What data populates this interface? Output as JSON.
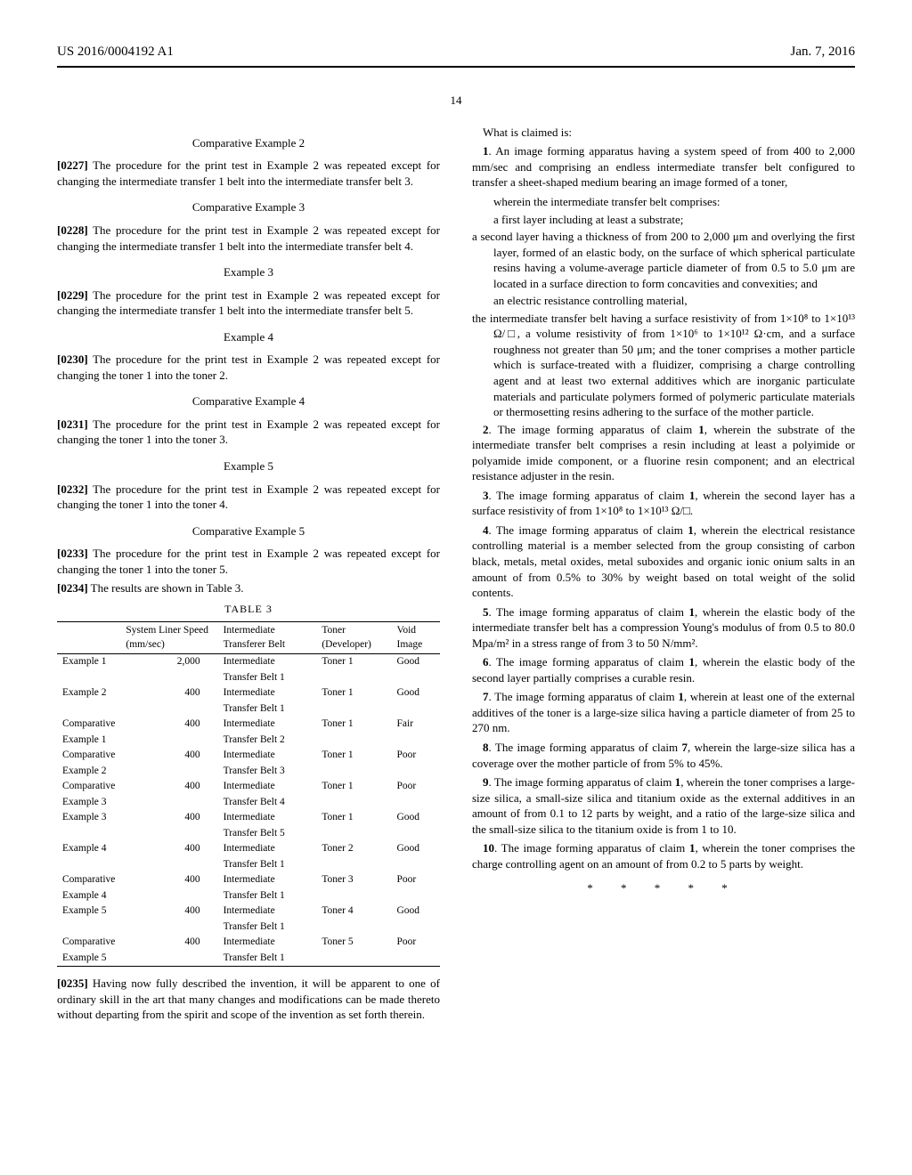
{
  "header": {
    "left": "US 2016/0004192 A1",
    "right": "Jan. 7, 2016",
    "page": "14"
  },
  "left": {
    "ce2_title": "Comparative Example 2",
    "p0227": "[0227]   The procedure for the print test in Example 2 was repeated except for changing the intermediate transfer 1 belt into the intermediate transfer belt 3.",
    "ce3_title": "Comparative Example 3",
    "p0228": "[0228]   The procedure for the print test in Example 2 was repeated except for changing the intermediate transfer 1 belt into the intermediate transfer belt 4.",
    "e3_title": "Example 3",
    "p0229": "[0229]   The procedure for the print test in Example 2 was repeated except for changing the intermediate transfer 1 belt into the intermediate transfer belt 5.",
    "e4_title": "Example 4",
    "p0230": "[0230]   The procedure for the print test in Example 2 was repeated except for changing the toner 1 into the toner 2.",
    "ce4_title": "Comparative Example 4",
    "p0231": "[0231]   The procedure for the print test in Example 2 was repeated except for changing the toner 1 into the toner 3.",
    "e5_title": "Example 5",
    "p0232": "[0232]   The procedure for the print test in Example 2 was repeated except for changing the toner 1 into the toner 4.",
    "ce5_title": "Comparative Example 5",
    "p0233": "[0233]   The procedure for the print test in Example 2 was repeated except for changing the toner 1 into the toner 5.",
    "p0234": "[0234]   The results are shown in Table 3.",
    "table": {
      "caption": "TABLE 3",
      "headers": [
        "",
        "System Liner Speed (mm/sec)",
        "Intermediate Transferer Belt",
        "Toner (Developer)",
        "Void Image"
      ],
      "rows": [
        [
          "Example 1",
          "2,000",
          "Intermediate Transfer Belt 1",
          "Toner 1",
          "Good"
        ],
        [
          "Example 2",
          "400",
          "Intermediate Transfer Belt 1",
          "Toner 1",
          "Good"
        ],
        [
          "Comparative Example 1",
          "400",
          "Intermediate Transfer Belt 2",
          "Toner 1",
          "Fair"
        ],
        [
          "Comparative Example 2",
          "400",
          "Intermediate Transfer Belt 3",
          "Toner 1",
          "Poor"
        ],
        [
          "Comparative Example 3",
          "400",
          "Intermediate Transfer Belt 4",
          "Toner 1",
          "Poor"
        ],
        [
          "Example 3",
          "400",
          "Intermediate Transfer Belt 5",
          "Toner 1",
          "Good"
        ],
        [
          "Example 4",
          "400",
          "Intermediate Transfer Belt 1",
          "Toner 2",
          "Good"
        ],
        [
          "Comparative Example 4",
          "400",
          "Intermediate Transfer Belt 1",
          "Toner 3",
          "Poor"
        ],
        [
          "Example 5",
          "400",
          "Intermediate Transfer Belt 1",
          "Toner 4",
          "Good"
        ],
        [
          "Comparative Example 5",
          "400",
          "Intermediate Transfer Belt 1",
          "Toner 5",
          "Poor"
        ]
      ]
    },
    "p0235": "[0235]   Having now fully described the invention, it will be apparent to one of ordinary skill in the art that many changes and modifications can be made thereto without departing from the spirit and scope of the invention as set forth therein."
  },
  "right": {
    "what": "What is claimed is:",
    "c1a": "1. An image forming apparatus having a system speed of from 400 to 2,000 mm/sec and comprising an endless intermediate transfer belt configured to transfer a sheet-shaped medium bearing an image formed of a toner,",
    "c1b": "wherein the intermediate transfer belt comprises:",
    "c1c": "a first layer including at least a substrate;",
    "c1d": "a second layer having a thickness of from 200 to 2,000 μm and overlying the first layer, formed of an elastic body, on the surface of which spherical particulate resins having a volume-average particle diameter of from 0.5 to 5.0 μm are located in a surface direction to form concavities and convexities; and",
    "c1e": "an electric resistance controlling material,",
    "c1f": "the intermediate transfer belt having a surface resistivity of from 1×10⁸ to 1×10¹³ Ω/□, a volume resistivity of from 1×10⁶ to 1×10¹² Ω·cm, and a surface roughness not greater than 50 μm; and the toner comprises a mother particle which is surface-treated with a fluidizer, comprising a charge controlling agent and at least two external additives which are inorganic particulate materials and particulate polymers formed of polymeric particulate materials or thermosetting resins adhering to the surface of the mother particle.",
    "c2": "2. The image forming apparatus of claim 1, wherein the substrate of the intermediate transfer belt comprises a resin including at least a polyimide or polyamide imide component, or a fluorine resin component; and an electrical resistance adjuster in the resin.",
    "c3": "3. The image forming apparatus of claim 1, wherein the second layer has a surface resistivity of from 1×10⁸ to 1×10¹³ Ω/□.",
    "c4": "4. The image forming apparatus of claim 1, wherein the electrical resistance controlling material is a member selected from the group consisting of carbon black, metals, metal oxides, metal suboxides and organic ionic onium salts in an amount of from 0.5% to 30% by weight based on total weight of the solid contents.",
    "c5": "5. The image forming apparatus of claim 1, wherein the elastic body of the intermediate transfer belt has a compression Young's modulus of from 0.5 to 80.0 Mpa/m² in a stress range of from 3 to 50 N/mm².",
    "c6": "6. The image forming apparatus of claim 1, wherein the elastic body of the second layer partially comprises a curable resin.",
    "c7": "7. The image forming apparatus of claim 1, wherein at least one of the external additives of the toner is a large-size silica having a particle diameter of from 25 to 270 nm.",
    "c8": "8. The image forming apparatus of claim 7, wherein the large-size silica has a coverage over the mother particle of from 5% to 45%.",
    "c9": "9. The image forming apparatus of claim 1, wherein the toner comprises a large-size silica, a small-size silica and titanium oxide as the external additives in an amount of from 0.1 to 12 parts by weight, and a ratio of the large-size silica and the small-size silica to the titanium oxide is from 1 to 10.",
    "c10": "10. The image forming apparatus of claim 1, wherein the toner comprises the charge controlling agent on an amount of from 0.2 to 5 parts by weight.",
    "stars": "*   *   *   *   *"
  }
}
